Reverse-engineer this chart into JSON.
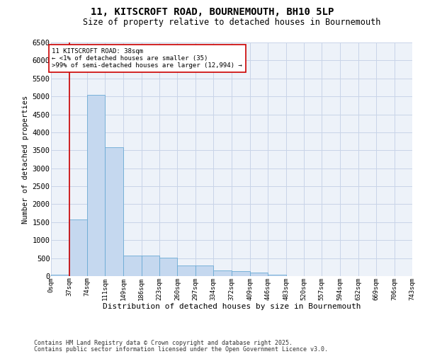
{
  "title1": "11, KITSCROFT ROAD, BOURNEMOUTH, BH10 5LP",
  "title2": "Size of property relative to detached houses in Bournemouth",
  "xlabel": "Distribution of detached houses by size in Bournemouth",
  "ylabel": "Number of detached properties",
  "footnote1": "Contains HM Land Registry data © Crown copyright and database right 2025.",
  "footnote2": "Contains public sector information licensed under the Open Government Licence v3.0.",
  "annotation_line1": "11 KITSCROFT ROAD: 38sqm",
  "annotation_line2": "← <1% of detached houses are smaller (35)",
  "annotation_line3": ">99% of semi-detached houses are larger (12,994) →",
  "property_size": 38,
  "bin_edges": [
    0,
    37,
    74,
    111,
    149,
    186,
    223,
    260,
    297,
    334,
    372,
    409,
    446,
    483,
    520,
    557,
    594,
    632,
    669,
    706,
    743
  ],
  "bin_labels": [
    "0sqm",
    "37sqm",
    "74sqm",
    "111sqm",
    "149sqm",
    "186sqm",
    "223sqm",
    "260sqm",
    "297sqm",
    "334sqm",
    "372sqm",
    "409sqm",
    "446sqm",
    "483sqm",
    "520sqm",
    "557sqm",
    "594sqm",
    "632sqm",
    "669sqm",
    "706sqm",
    "743sqm"
  ],
  "bar_heights": [
    35,
    1580,
    5050,
    3580,
    570,
    570,
    520,
    290,
    290,
    150,
    140,
    95,
    45,
    8,
    4,
    4,
    4,
    4,
    4,
    4
  ],
  "bar_color": "#c5d8ef",
  "bar_edge_color": "#6aaad4",
  "red_line_color": "#cc0000",
  "annotation_box_color": "#cc0000",
  "grid_color": "#c8d4e8",
  "bg_color": "#edf2f9",
  "ylim": [
    0,
    6500
  ],
  "yticks": [
    0,
    500,
    1000,
    1500,
    2000,
    2500,
    3000,
    3500,
    4000,
    4500,
    5000,
    5500,
    6000,
    6500
  ]
}
